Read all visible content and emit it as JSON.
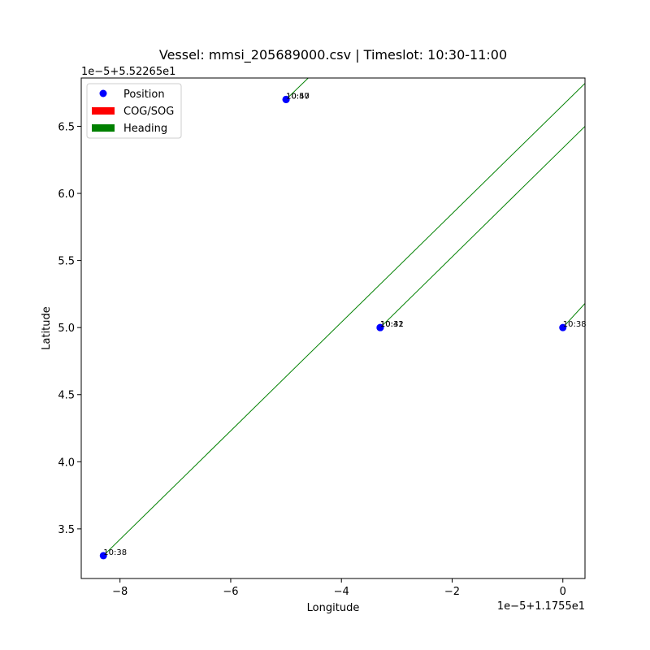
{
  "chart_data": {
    "type": "scatter",
    "title": "Vessel: mmsi_205689000.csv | Timeslot: 10:30-11:00",
    "xlabel": "Longitude",
    "ylabel": "Latitude",
    "x_offset_label": "1e−5+1.1755e1",
    "y_offset_label": "1e−5+5.52265e1",
    "xlim": [
      -8.7,
      0.4
    ],
    "ylim": [
      3.13,
      6.86
    ],
    "xticks": [
      -8,
      -6,
      -4,
      -2,
      0
    ],
    "xtick_labels": [
      "−8",
      "−6",
      "−4",
      "−2",
      "0"
    ],
    "yticks": [
      3.5,
      4.0,
      4.5,
      5.0,
      5.5,
      6.0,
      6.5
    ],
    "ytick_labels": [
      "3.5",
      "4.0",
      "4.5",
      "5.0",
      "5.5",
      "6.0",
      "6.5"
    ],
    "grid": false,
    "legend_position": "top-left",
    "legend": [
      {
        "label": "Position",
        "kind": "marker",
        "color": "#0000ff"
      },
      {
        "label": "COG/SOG",
        "kind": "patch",
        "color": "#ff0000"
      },
      {
        "label": "Heading",
        "kind": "patch",
        "color": "#008000"
      }
    ],
    "points": [
      {
        "x": -8.3,
        "y": 3.3,
        "label": "10:38"
      },
      {
        "x": -5.0,
        "y": 6.7,
        "label": "10:50"
      },
      {
        "x": -5.0,
        "y": 6.7,
        "label": "10:47"
      },
      {
        "x": -3.3,
        "y": 5.0,
        "label": "10:41"
      },
      {
        "x": -3.3,
        "y": 5.0,
        "label": "10:32"
      },
      {
        "x": 0.0,
        "y": 5.0,
        "label": "10:38"
      }
    ],
    "heading_lines": [
      {
        "x1": -8.3,
        "y1": 3.3,
        "x2": 0.4,
        "y2": 6.82
      },
      {
        "x1": -5.0,
        "y1": 6.7,
        "x2": -4.6,
        "y2": 6.86
      },
      {
        "x1": -3.3,
        "y1": 5.0,
        "x2": 0.4,
        "y2": 6.5
      },
      {
        "x1": 0.0,
        "y1": 5.0,
        "x2": 0.4,
        "y2": 5.18
      }
    ],
    "colors": {
      "position": "#0000ff",
      "cog_sog": "#ff0000",
      "heading": "#008000"
    }
  }
}
